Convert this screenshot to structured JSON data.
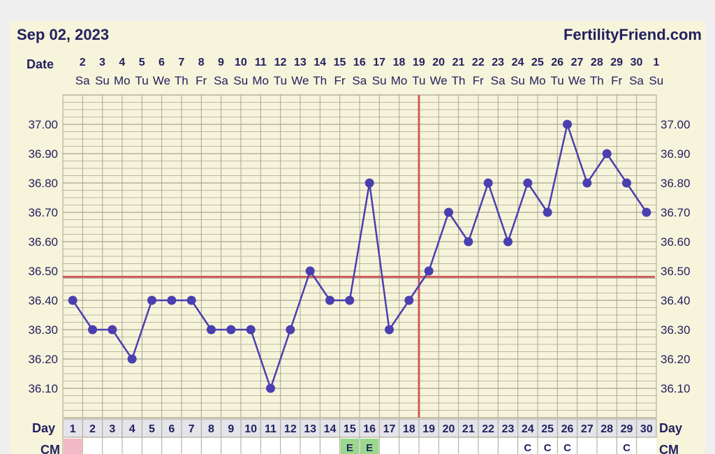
{
  "header": {
    "date": "Sep 02, 2023",
    "brand": "FertilityFriend.com"
  },
  "labels": {
    "date_row": "Date",
    "day_row_left": "Day",
    "day_row_right": "Day",
    "cm_row_left": "CM",
    "cm_row_right": "CM"
  },
  "colors": {
    "background": "#efefef",
    "plot_bg": "#f7f4dc",
    "grid": "#a8a590",
    "series": "#4a3fb0",
    "coverline": "#cd5c5c",
    "text": "#22215e",
    "cm_pink": "#f2b8c4",
    "cm_green": "#9ad88e"
  },
  "chart_data": {
    "type": "line",
    "title": "",
    "xlabel": "Day",
    "ylabel": "",
    "ylim": [
      36.0,
      37.1
    ],
    "y_ticks": [
      "37.00",
      "36.90",
      "36.80",
      "36.70",
      "36.60",
      "36.50",
      "36.40",
      "36.30",
      "36.20",
      "36.10"
    ],
    "cycle_days": [
      1,
      2,
      3,
      4,
      5,
      6,
      7,
      8,
      9,
      10,
      11,
      12,
      13,
      14,
      15,
      16,
      17,
      18,
      19,
      20,
      21,
      22,
      23,
      24,
      25,
      26,
      27,
      28,
      29,
      30
    ],
    "dates": [
      "2",
      "3",
      "4",
      "5",
      "6",
      "7",
      "8",
      "9",
      "10",
      "11",
      "12",
      "13",
      "14",
      "15",
      "16",
      "17",
      "18",
      "19",
      "20",
      "21",
      "22",
      "23",
      "24",
      "25",
      "26",
      "27",
      "28",
      "29",
      "30",
      "1"
    ],
    "weekdays": [
      "Sa",
      "Su",
      "Mo",
      "Tu",
      "We",
      "Th",
      "Fr",
      "Sa",
      "Su",
      "Mo",
      "Tu",
      "We",
      "Th",
      "Fr",
      "Sa",
      "Su",
      "Mo",
      "Tu",
      "We",
      "Th",
      "Fr",
      "Sa",
      "Su",
      "Mo",
      "Tu",
      "We",
      "Th",
      "Fr",
      "Sa",
      "Su"
    ],
    "series": [
      {
        "values": [
          36.4,
          36.3,
          36.3,
          36.2,
          36.4,
          36.4,
          36.4,
          36.3,
          36.3,
          36.3,
          36.1,
          36.3,
          36.5,
          36.4,
          36.4,
          36.8,
          36.3,
          36.4,
          36.5,
          36.7,
          36.6,
          36.8,
          36.6,
          36.8,
          36.7,
          37.0,
          36.8,
          36.9,
          36.8,
          36.7
        ]
      }
    ],
    "coverline": 36.48,
    "ovulation_day": 18,
    "cervical_mucus": [
      "pink",
      "",
      "",
      "",
      "",
      "",
      "",
      "",
      "",
      "",
      "",
      "",
      "",
      "",
      "E",
      "E",
      "",
      "",
      "",
      "",
      "",
      "",
      "",
      "C",
      "C",
      "C",
      "",
      "",
      "C",
      ""
    ],
    "grid": true,
    "legend": "none"
  }
}
